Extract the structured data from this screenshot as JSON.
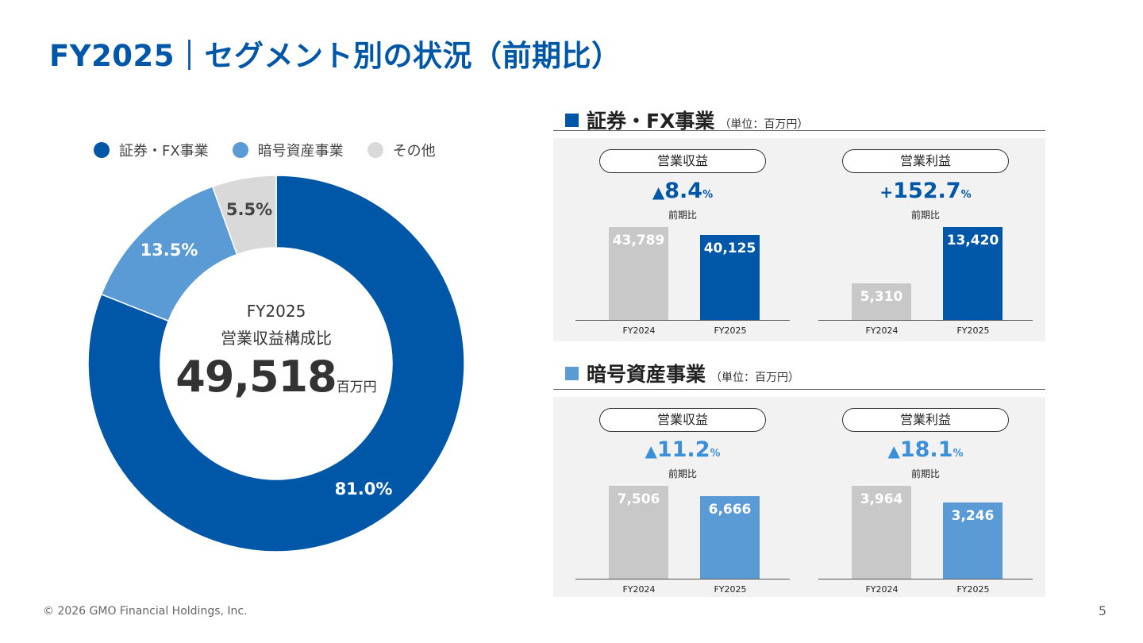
{
  "title": "FY2025｜セグメント別の状況（前期比）",
  "footer": "© 2026 GMO Financial Holdings, Inc.",
  "page_number": "5",
  "colors": {
    "primary": "#0057a8",
    "crypto": "#5b9bd5",
    "other": "#d9d9d9",
    "prev_bar": "#c8c8c8"
  },
  "donut": {
    "center_line1": "FY2025",
    "center_line2": "営業収益構成比",
    "total": "49,518",
    "total_unit": "百万円"
  },
  "segments": [
    {
      "name": "証券・FX事業",
      "unit": "（単位：百万円）",
      "color": "#0057a8",
      "metrics": [
        {
          "label": "営業収益",
          "prefix": "▲",
          "change": "8.4",
          "pct": "%",
          "sub": "前期比",
          "change_color": "#0057a8",
          "fy2024": "43,789",
          "fy2025": "40,125"
        },
        {
          "label": "営業利益",
          "prefix": "+",
          "change": "152.7",
          "pct": "%",
          "sub": "前期比",
          "change_color": "#0057a8",
          "fy2024": "5,310",
          "fy2025": "13,420"
        }
      ]
    },
    {
      "name": "暗号資産事業",
      "unit": "（単位：百万円）",
      "color": "#5b9bd5",
      "metrics": [
        {
          "label": "営業収益",
          "prefix": "▲",
          "change": "11.2",
          "pct": "%",
          "sub": "前期比",
          "change_color": "#3b8fd9",
          "fy2024": "7,506",
          "fy2025": "6,666"
        },
        {
          "label": "営業利益",
          "prefix": "▲",
          "change": "18.1",
          "pct": "%",
          "sub": "前期比",
          "change_color": "#3b8fd9",
          "fy2024": "3,964",
          "fy2025": "3,246"
        }
      ]
    }
  ],
  "chart_data": [
    {
      "type": "pie",
      "categories": [
        "証券・FX事業",
        "暗号資産事業",
        "その他"
      ],
      "values": [
        81.0,
        13.5,
        5.5
      ],
      "labels": [
        "81.0%",
        "13.5%",
        "5.5%"
      ],
      "colors": [
        "#0057a8",
        "#5b9bd5",
        "#d9d9d9"
      ],
      "legend_position": "top"
    },
    {
      "type": "bar",
      "categories": [
        "FY2024",
        "FY2025"
      ],
      "values": [
        43789,
        40125
      ]
    },
    {
      "type": "bar",
      "categories": [
        "FY2024",
        "FY2025"
      ],
      "values": [
        5310,
        13420
      ]
    },
    {
      "type": "bar",
      "categories": [
        "FY2024",
        "FY2025"
      ],
      "values": [
        7506,
        6666
      ]
    },
    {
      "type": "bar",
      "categories": [
        "FY2024",
        "FY2025"
      ],
      "values": [
        3964,
        3246
      ]
    }
  ]
}
